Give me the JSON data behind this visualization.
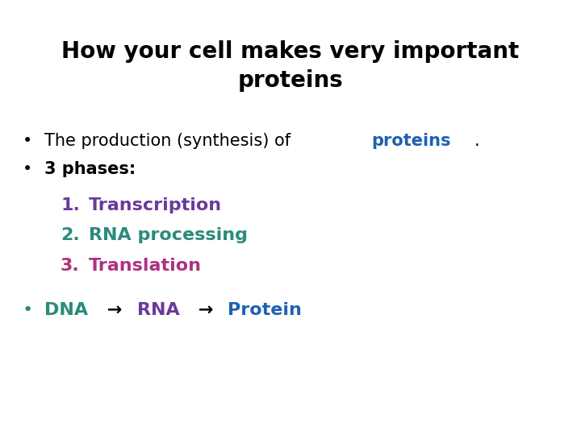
{
  "title_line1": "How your cell makes very important",
  "title_line2": "proteins",
  "title_color": "#000000",
  "title_fontsize": 20,
  "background_color": "#ffffff",
  "bullet1_prefix": "The production (synthesis) of ",
  "bullet1_highlight": "proteins",
  "bullet1_suffix": ".",
  "bullet1_color": "#000000",
  "bullet1_highlight_color": "#2060B0",
  "bullet1_fontsize": 15,
  "bullet2_text": "3 phases:",
  "bullet2_color": "#000000",
  "bullet2_fontsize": 15,
  "item1_num": "1.",
  "item1_text": "  Transcription",
  "item1_color": "#6B3A9B",
  "item2_num": "2.",
  "item2_text": "  RNA processing",
  "item2_color": "#2A8B7B",
  "item3_num": "3.",
  "item3_text": "  Translation",
  "item3_color": "#B03080",
  "numbered_fontsize": 16,
  "bullet3_dna": "DNA",
  "bullet3_arrow1": " → ",
  "bullet3_rna": "RNA",
  "bullet3_arrow2": " → ",
  "bullet3_protein": "Protein",
  "bullet3_dna_color": "#2A8B7B",
  "bullet3_rna_color": "#6B3A9B",
  "bullet3_protein_color": "#2060B0",
  "bullet3_arrow_color": "#000000",
  "bullet3_fontsize": 16,
  "bullet_color": "#000000",
  "bullet_char": "•"
}
